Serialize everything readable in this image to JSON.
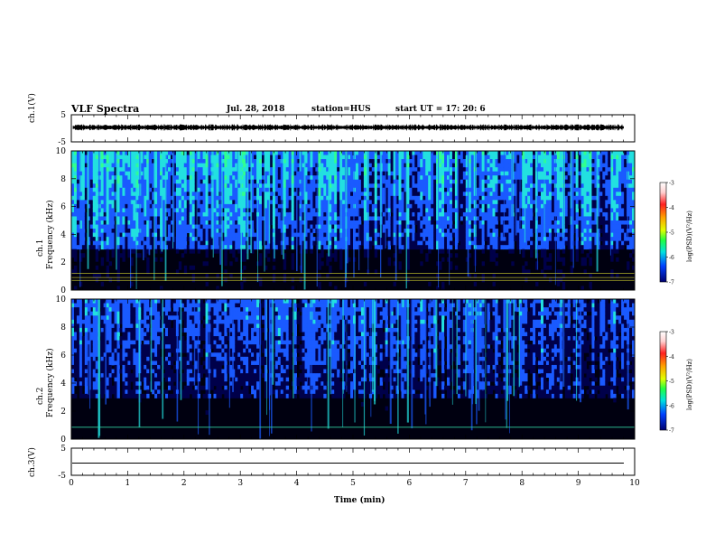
{
  "header": {
    "title": "VLF Spectra",
    "date": "Jul. 28, 2018",
    "station": "station=HUS",
    "start": "start UT = 17: 20: 6"
  },
  "colorbar": {
    "label": "log(PSD)(V²/Hz)",
    "ticks": [
      "-3",
      "-4",
      "-5",
      "-6",
      "-7"
    ]
  },
  "colors": {
    "background_spec": "#000010",
    "low_bg": "#00004a",
    "mid": "#1a5aff",
    "high": "#22e0e0",
    "peak": "#30ff90"
  },
  "chart_data": [
    {
      "type": "line",
      "panel": "ch1-waveform",
      "ylabel": "ch.1(V)",
      "ylim": [
        -5,
        5
      ],
      "yticks": [
        "5",
        "-5"
      ],
      "x_range_min": [
        0,
        10
      ]
    },
    {
      "type": "heatmap",
      "panel": "ch1-spectrogram",
      "ylabel_lines": [
        "ch.1",
        "Frequency (kHz)"
      ],
      "ylim": [
        0,
        10
      ],
      "yticks": [
        "10",
        "8",
        "6",
        "4",
        "2",
        "0"
      ],
      "x_range_min": [
        0,
        10
      ]
    },
    {
      "type": "heatmap",
      "panel": "ch2-spectrogram",
      "ylabel_lines": [
        "ch.2",
        "Frequency (kHz)"
      ],
      "ylim": [
        0,
        10
      ],
      "yticks": [
        "10",
        "8",
        "6",
        "4",
        "2",
        "0"
      ],
      "x_range_min": [
        0,
        10
      ]
    },
    {
      "type": "line",
      "panel": "ch3-waveform",
      "ylabel": "ch.3(V)",
      "ylim": [
        -5,
        5
      ],
      "yticks": [
        "5",
        "-5"
      ],
      "x_range_min": [
        0,
        10
      ],
      "xlabel": "Time (min)",
      "xticks": [
        "0",
        "1",
        "2",
        "3",
        "4",
        "5",
        "6",
        "7",
        "8",
        "9",
        "10"
      ]
    }
  ]
}
